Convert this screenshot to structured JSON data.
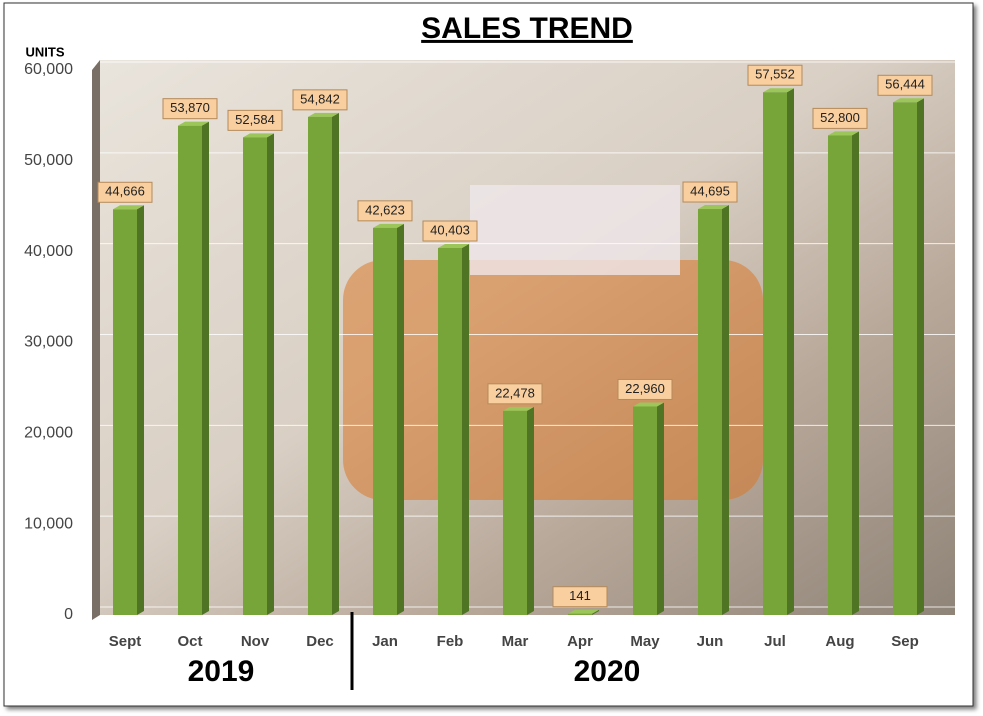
{
  "chart_data": {
    "type": "bar",
    "title": "SALES TREND",
    "y_label": "UNITS",
    "categories": [
      "Sept",
      "Oct",
      "Nov",
      "Dec",
      "Jan",
      "Feb",
      "Mar",
      "Apr",
      "May",
      "Jun",
      "Jul",
      "Aug",
      "Sep"
    ],
    "values": [
      44666,
      53870,
      52584,
      54842,
      42623,
      40403,
      22478,
      141,
      22960,
      44695,
      57552,
      52800,
      56444
    ],
    "value_labels": [
      "44,666",
      "53,870",
      "52,584",
      "54,842",
      "42,623",
      "40,403",
      "22,478",
      "141",
      "22,960",
      "44,695",
      "57,552",
      "52,800",
      "56,444"
    ],
    "color": "#77a53a",
    "groups": [
      "2019",
      "2020"
    ],
    "ylim": [
      0,
      60000
    ],
    "yticks": [
      0,
      {
        "value": 10000,
        "label": "10,000"
      },
      {
        "value": 20000,
        "label": "20,000"
      },
      {
        "value": 30000,
        "label": "30,000"
      },
      {
        "value": 40000,
        "label": "40,000"
      },
      {
        "value": 50000,
        "label": "50,000"
      },
      {
        "value": 60000,
        "label": "60,000"
      }
    ],
    "grid": true
  }
}
